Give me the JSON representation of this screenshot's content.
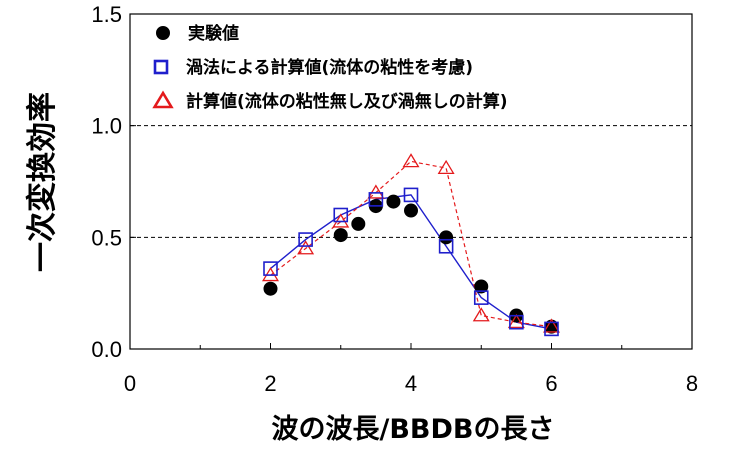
{
  "chart_data": {
    "type": "scatter",
    "title": "",
    "xlabel": "波の波長/BBDBの長さ",
    "ylabel": "一次変換効率",
    "xlim": [
      0,
      8
    ],
    "ylim": [
      0.0,
      1.5
    ],
    "x_ticks": [
      "0",
      "2",
      "4",
      "6",
      "8"
    ],
    "y_ticks": [
      "0.0",
      "0.5",
      "1.0",
      "1.5"
    ],
    "x_tick_values": [
      0,
      2,
      4,
      6,
      8
    ],
    "y_tick_values": [
      0.0,
      0.5,
      1.0,
      1.5
    ],
    "gridlines_y": [
      0.5,
      1.0
    ],
    "grid": "horizontal dashed at 0.5 and 1.0",
    "legend_position": "top-left",
    "series": [
      {
        "name": "実験値",
        "marker": "filled-circle",
        "color": "#000000",
        "line": false,
        "x": [
          2.0,
          3.0,
          3.25,
          3.5,
          3.75,
          4.0,
          4.5,
          5.0,
          5.5,
          6.0
        ],
        "y": [
          0.27,
          0.51,
          0.56,
          0.64,
          0.66,
          0.62,
          0.5,
          0.28,
          0.15,
          0.1
        ]
      },
      {
        "name": "渦法による計算値(流体の粘性を考慮)",
        "marker": "open-square",
        "color": "#1f1fcc",
        "line": "solid",
        "x": [
          2.0,
          2.5,
          3.0,
          3.5,
          4.0,
          4.5,
          5.0,
          5.5,
          6.0
        ],
        "y": [
          0.36,
          0.49,
          0.6,
          0.67,
          0.69,
          0.46,
          0.23,
          0.12,
          0.09
        ]
      },
      {
        "name": "計算値(流体の粘性無し及び渦無しの計算)",
        "marker": "open-triangle",
        "color": "#e41a1c",
        "line": "dashed",
        "x": [
          2.0,
          2.5,
          3.0,
          3.5,
          4.0,
          4.5,
          5.0,
          5.5,
          6.0
        ],
        "y": [
          0.33,
          0.45,
          0.57,
          0.7,
          0.84,
          0.81,
          0.15,
          0.12,
          0.1
        ]
      }
    ]
  }
}
